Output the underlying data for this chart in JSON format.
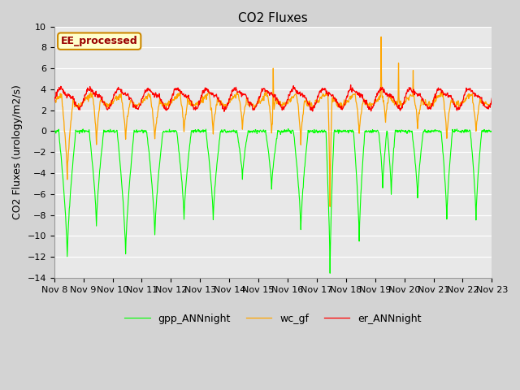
{
  "title": "CO2 Fluxes",
  "ylabel": "CO2 Fluxes (urology/m2/s)",
  "xlabel": "",
  "ylim": [
    -14,
    10
  ],
  "yticks": [
    -14,
    -12,
    -10,
    -8,
    -6,
    -4,
    -2,
    0,
    2,
    4,
    6,
    8,
    10
  ],
  "xtick_labels": [
    "Nov 8",
    "Nov 9",
    "Nov 10",
    "Nov 11",
    "Nov 12",
    "Nov 13",
    "Nov 14",
    "Nov 15",
    "Nov 16",
    "Nov 17",
    "Nov 18",
    "Nov 19",
    "Nov 20",
    "Nov 21",
    "Nov 22",
    "Nov 23"
  ],
  "colors": {
    "gpp": "#00ff00",
    "er": "#ff0000",
    "wc": "#ffa500"
  },
  "legend_labels": [
    "gpp_ANNnight",
    "er_ANNnight",
    "wc_gf"
  ],
  "annotation_text": "EE_processed",
  "annotation_box_facecolor": "#ffffcc",
  "annotation_box_edgecolor": "#cc8800",
  "background_color": "#d3d3d3",
  "plot_bg_color": "#e8e8e8",
  "title_fontsize": 11,
  "label_fontsize": 9,
  "tick_fontsize": 8,
  "legend_fontsize": 9,
  "n_points": 1080
}
